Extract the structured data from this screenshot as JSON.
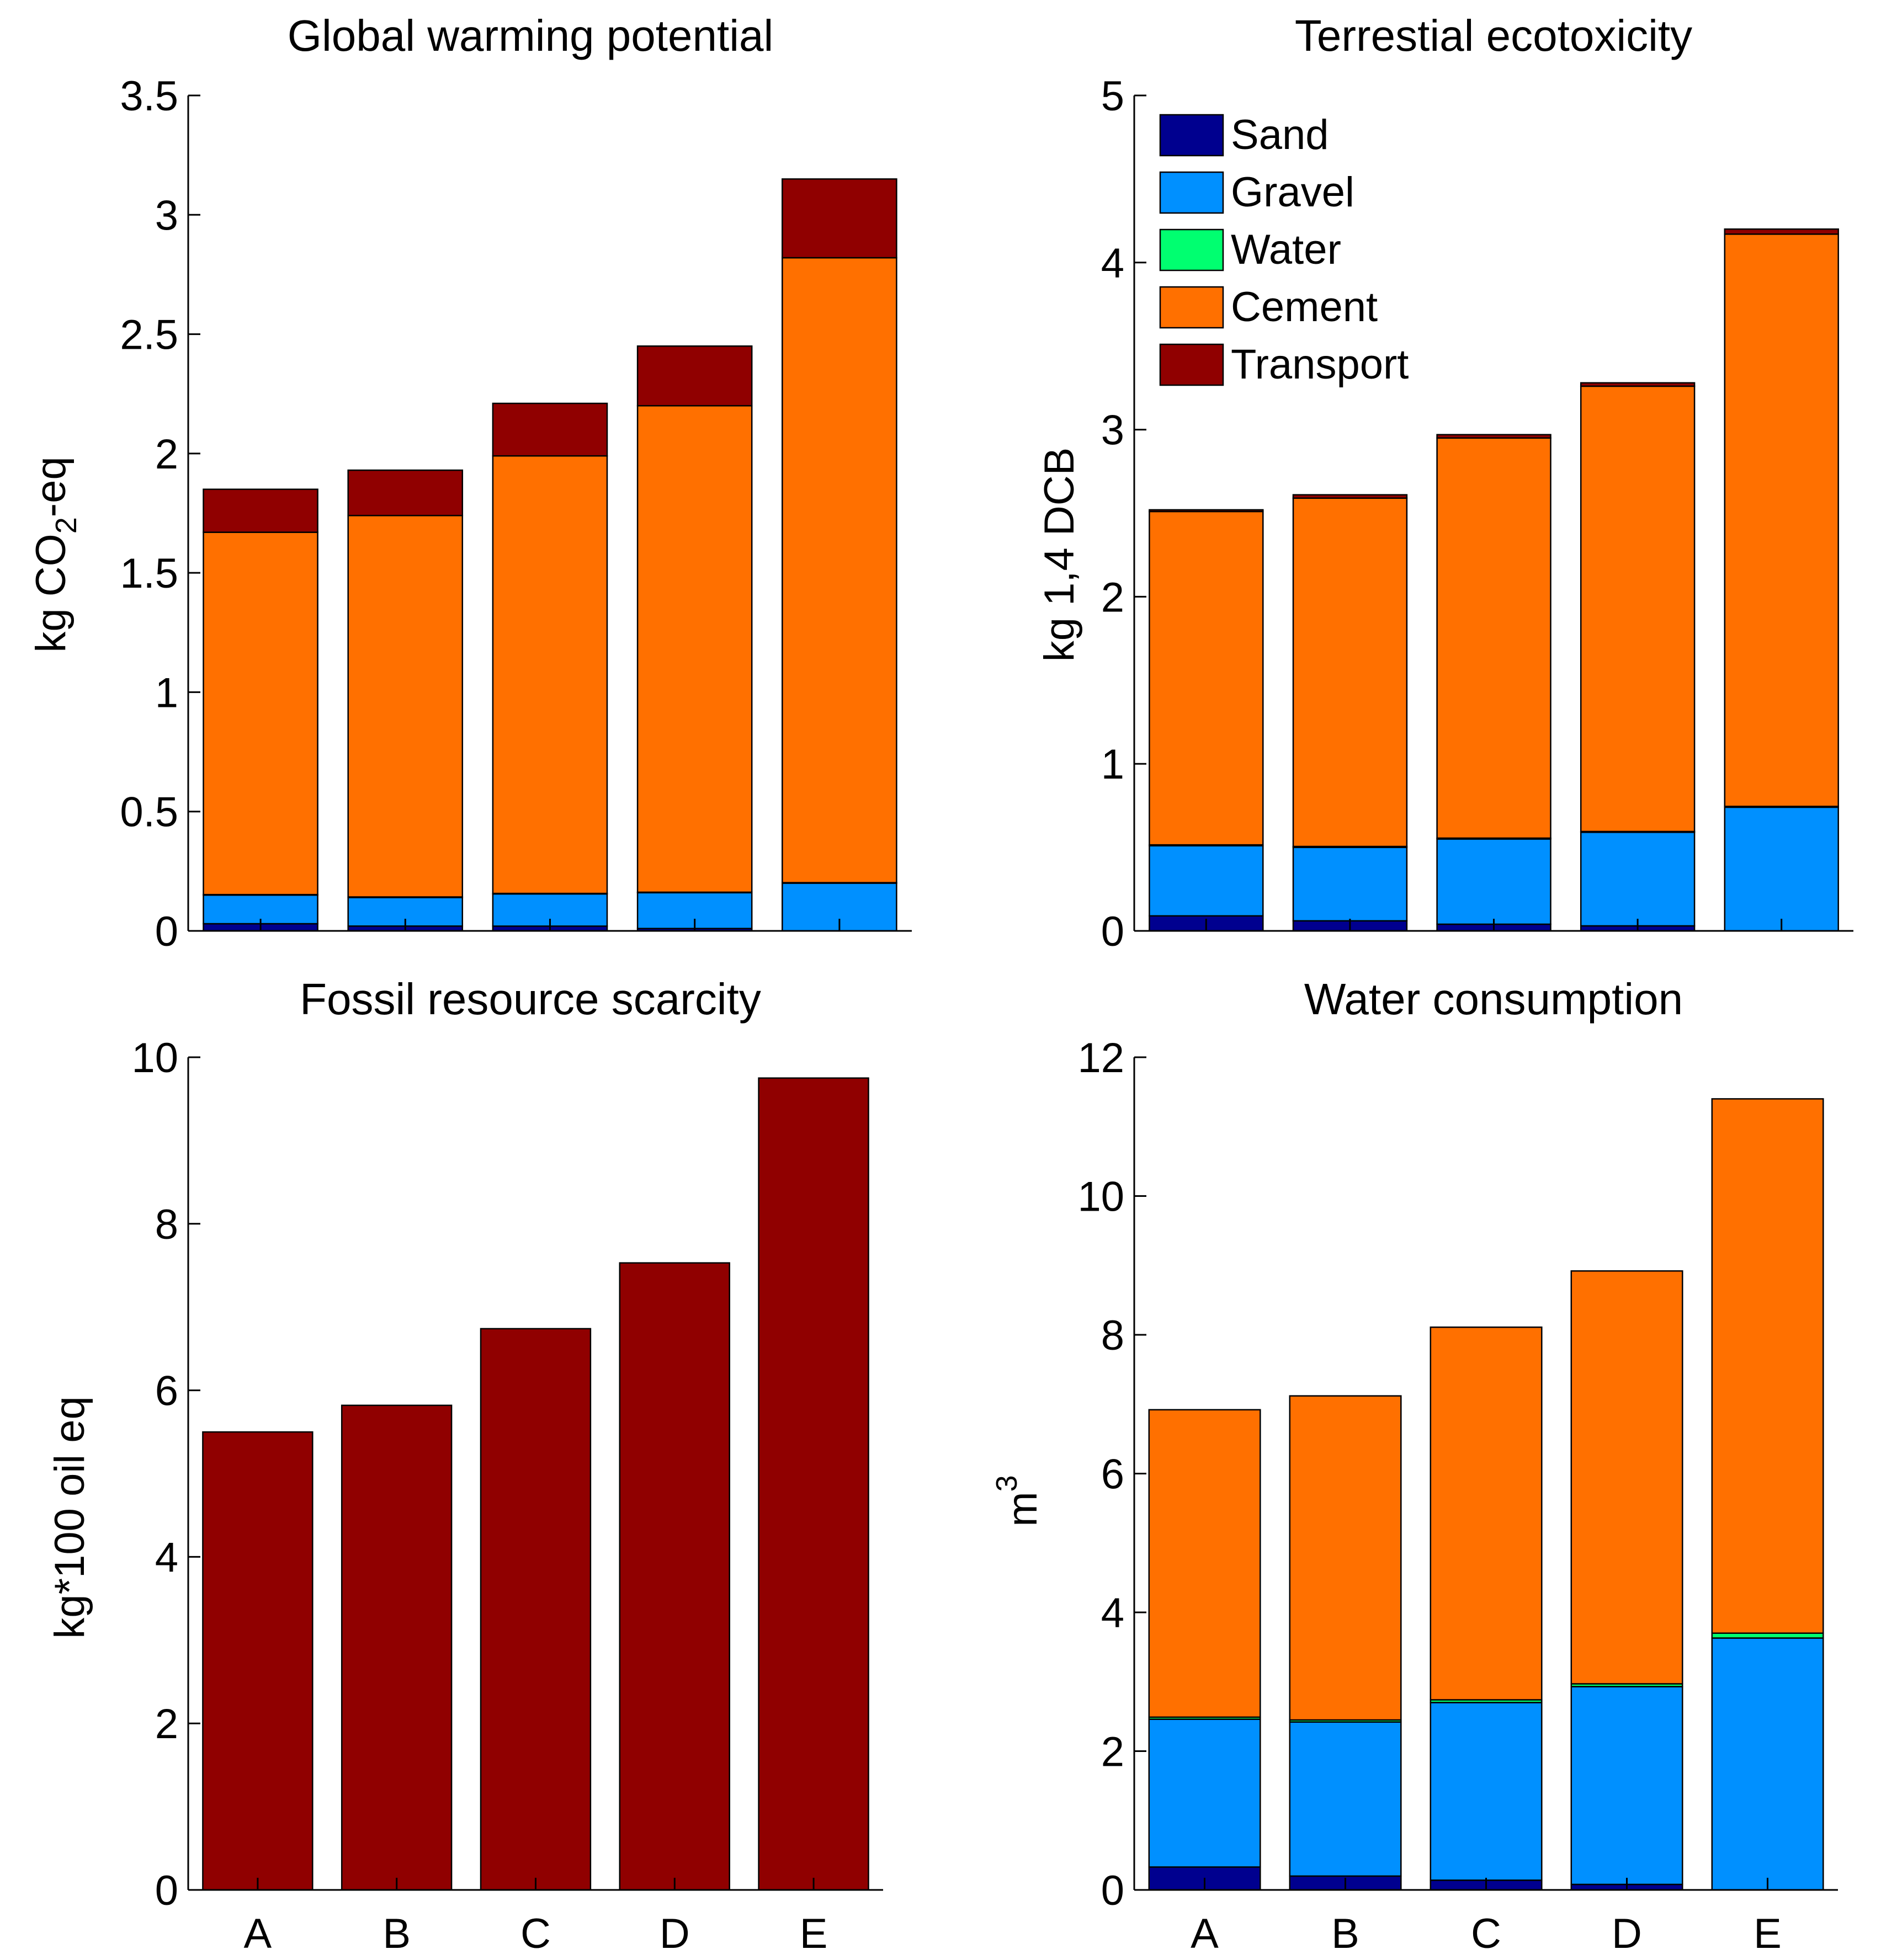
{
  "colors": {
    "Sand": "#00008f",
    "Gravel": "#0090ff",
    "Water": "#00ff70",
    "Cement": "#ff7000",
    "Transport": "#900000"
  },
  "legend": {
    "entries": [
      "Sand",
      "Gravel",
      "Water",
      "Cement",
      "Transport"
    ]
  },
  "chart_data": [
    {
      "type": "bar",
      "stacked": true,
      "title": "Global warming potential",
      "ylabel": "kg CO2-eq",
      "ylabel_main": "kg CO",
      "ylabel_sub": "2",
      "ylabel_suffix": "-eq",
      "ylim": [
        0,
        3.5
      ],
      "yticks": [
        0,
        0.5,
        1,
        1.5,
        2,
        2.5,
        3,
        3.5
      ],
      "ytick_labels": [
        "0",
        "0.5",
        "1",
        "1.5",
        "2",
        "2.5",
        "3",
        "3.5"
      ],
      "categories": [
        "A",
        "B",
        "C",
        "D",
        "E"
      ],
      "show_xticklabels": false,
      "series": [
        {
          "name": "Sand",
          "values": [
            0.03,
            0.02,
            0.02,
            0.01,
            0.0
          ]
        },
        {
          "name": "Gravel",
          "values": [
            0.12,
            0.12,
            0.135,
            0.15,
            0.2
          ]
        },
        {
          "name": "Water",
          "values": [
            0.002,
            0.002,
            0.002,
            0.002,
            0.002
          ]
        },
        {
          "name": "Cement",
          "values": [
            1.518,
            1.598,
            1.833,
            2.038,
            2.618
          ]
        },
        {
          "name": "Transport",
          "values": [
            0.18,
            0.19,
            0.22,
            0.25,
            0.33
          ]
        }
      ]
    },
    {
      "type": "bar",
      "stacked": true,
      "title": "Terrestial ecotoxicity",
      "ylabel": "kg 1,4 DCB",
      "ylim": [
        0,
        5
      ],
      "yticks": [
        0,
        1,
        2,
        3,
        4,
        5
      ],
      "ytick_labels": [
        "0",
        "1",
        "2",
        "3",
        "4",
        "5"
      ],
      "categories": [
        "A",
        "B",
        "C",
        "D",
        "E"
      ],
      "show_xticklabels": false,
      "legend": true,
      "series": [
        {
          "name": "Sand",
          "values": [
            0.09,
            0.06,
            0.04,
            0.03,
            0.0
          ]
        },
        {
          "name": "Gravel",
          "values": [
            0.42,
            0.44,
            0.51,
            0.56,
            0.74
          ]
        },
        {
          "name": "Water",
          "values": [
            0.005,
            0.005,
            0.005,
            0.005,
            0.005
          ]
        },
        {
          "name": "Cement",
          "values": [
            1.995,
            2.085,
            2.395,
            2.665,
            3.425
          ]
        },
        {
          "name": "Transport",
          "values": [
            0.01,
            0.02,
            0.02,
            0.02,
            0.03
          ]
        }
      ]
    },
    {
      "type": "bar",
      "stacked": true,
      "title": "Fossil resource scarcity",
      "ylabel": "kg*100 oil eq",
      "ylim": [
        0,
        10
      ],
      "yticks": [
        0,
        2,
        4,
        6,
        8,
        10
      ],
      "ytick_labels": [
        "0",
        "2",
        "4",
        "6",
        "8",
        "10"
      ],
      "categories": [
        "A",
        "B",
        "C",
        "D",
        "E"
      ],
      "show_xticklabels": true,
      "series": [
        {
          "name": "Transport",
          "values": [
            5.5,
            5.82,
            6.74,
            7.53,
            9.75
          ]
        }
      ]
    },
    {
      "type": "bar",
      "stacked": true,
      "title": "Water consumption",
      "ylabel": "m3",
      "ylabel_main": "m",
      "ylabel_sup": "3",
      "ylim": [
        0,
        12
      ],
      "yticks": [
        0,
        2,
        4,
        6,
        8,
        10,
        12
      ],
      "ytick_labels": [
        "0",
        "2",
        "4",
        "6",
        "8",
        "10",
        "12"
      ],
      "categories": [
        "A",
        "B",
        "C",
        "D",
        "E"
      ],
      "show_xticklabels": true,
      "series": [
        {
          "name": "Sand",
          "values": [
            0.33,
            0.2,
            0.14,
            0.08,
            0.0
          ]
        },
        {
          "name": "Gravel",
          "values": [
            2.13,
            2.22,
            2.56,
            2.85,
            3.63
          ]
        },
        {
          "name": "Water",
          "values": [
            0.03,
            0.03,
            0.04,
            0.04,
            0.07
          ]
        },
        {
          "name": "Cement",
          "values": [
            4.43,
            4.67,
            5.37,
            5.95,
            7.7
          ]
        },
        {
          "name": "Transport",
          "values": [
            0.0,
            0.0,
            0.0,
            0.0,
            0.0
          ]
        }
      ]
    }
  ]
}
